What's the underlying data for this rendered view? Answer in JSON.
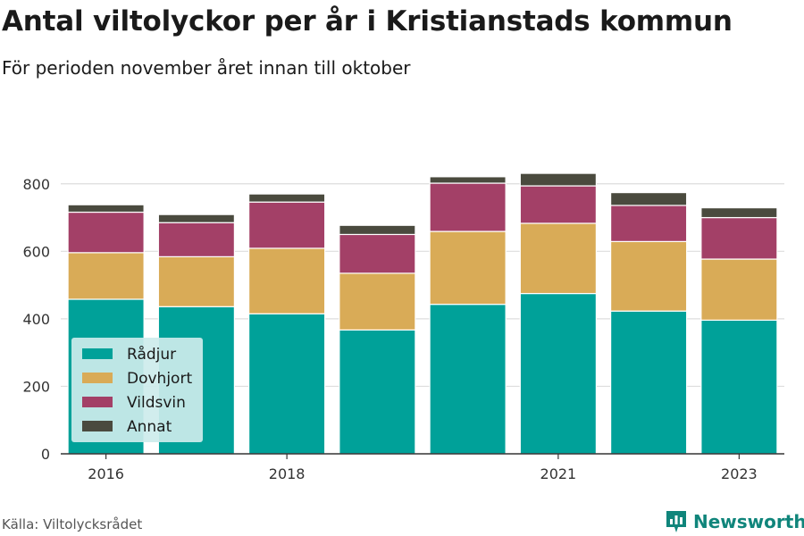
{
  "title": "Antal viltolyckor per år i Kristianstads kommun",
  "subtitle": "För perioden november året innan till oktober",
  "source": "Källa: Viltolycksrådet",
  "brand": "Newsworthy",
  "colors": {
    "Rådjur": "#00a199",
    "Dovhjort": "#d9ab57",
    "Vildsvin": "#a34067",
    "Annat": "#4a4a3e",
    "grid": "#dddddd",
    "legend_bg": "#cdeceb",
    "brand": "#10857b"
  },
  "chart_data": {
    "type": "bar",
    "stacked": true,
    "categories": [
      2016,
      2017,
      2018,
      2019,
      2020,
      2021,
      2022,
      2023
    ],
    "x_tick_labels": [
      "2016",
      "2018",
      "2021",
      "2023"
    ],
    "y_ticks": [
      0,
      200,
      400,
      600,
      800
    ],
    "ylim": [
      0,
      900
    ],
    "grid": true,
    "legend_position": "bottom-left",
    "series": [
      {
        "name": "Rådjur",
        "values": [
          458,
          436,
          415,
          367,
          443,
          475,
          423,
          396
        ]
      },
      {
        "name": "Dovhjort",
        "values": [
          138,
          148,
          194,
          168,
          216,
          208,
          206,
          181
        ]
      },
      {
        "name": "Vildsvin",
        "values": [
          120,
          101,
          137,
          115,
          143,
          111,
          107,
          123
        ]
      },
      {
        "name": "Annat",
        "values": [
          22,
          24,
          24,
          27,
          19,
          37,
          38,
          29
        ]
      }
    ]
  }
}
